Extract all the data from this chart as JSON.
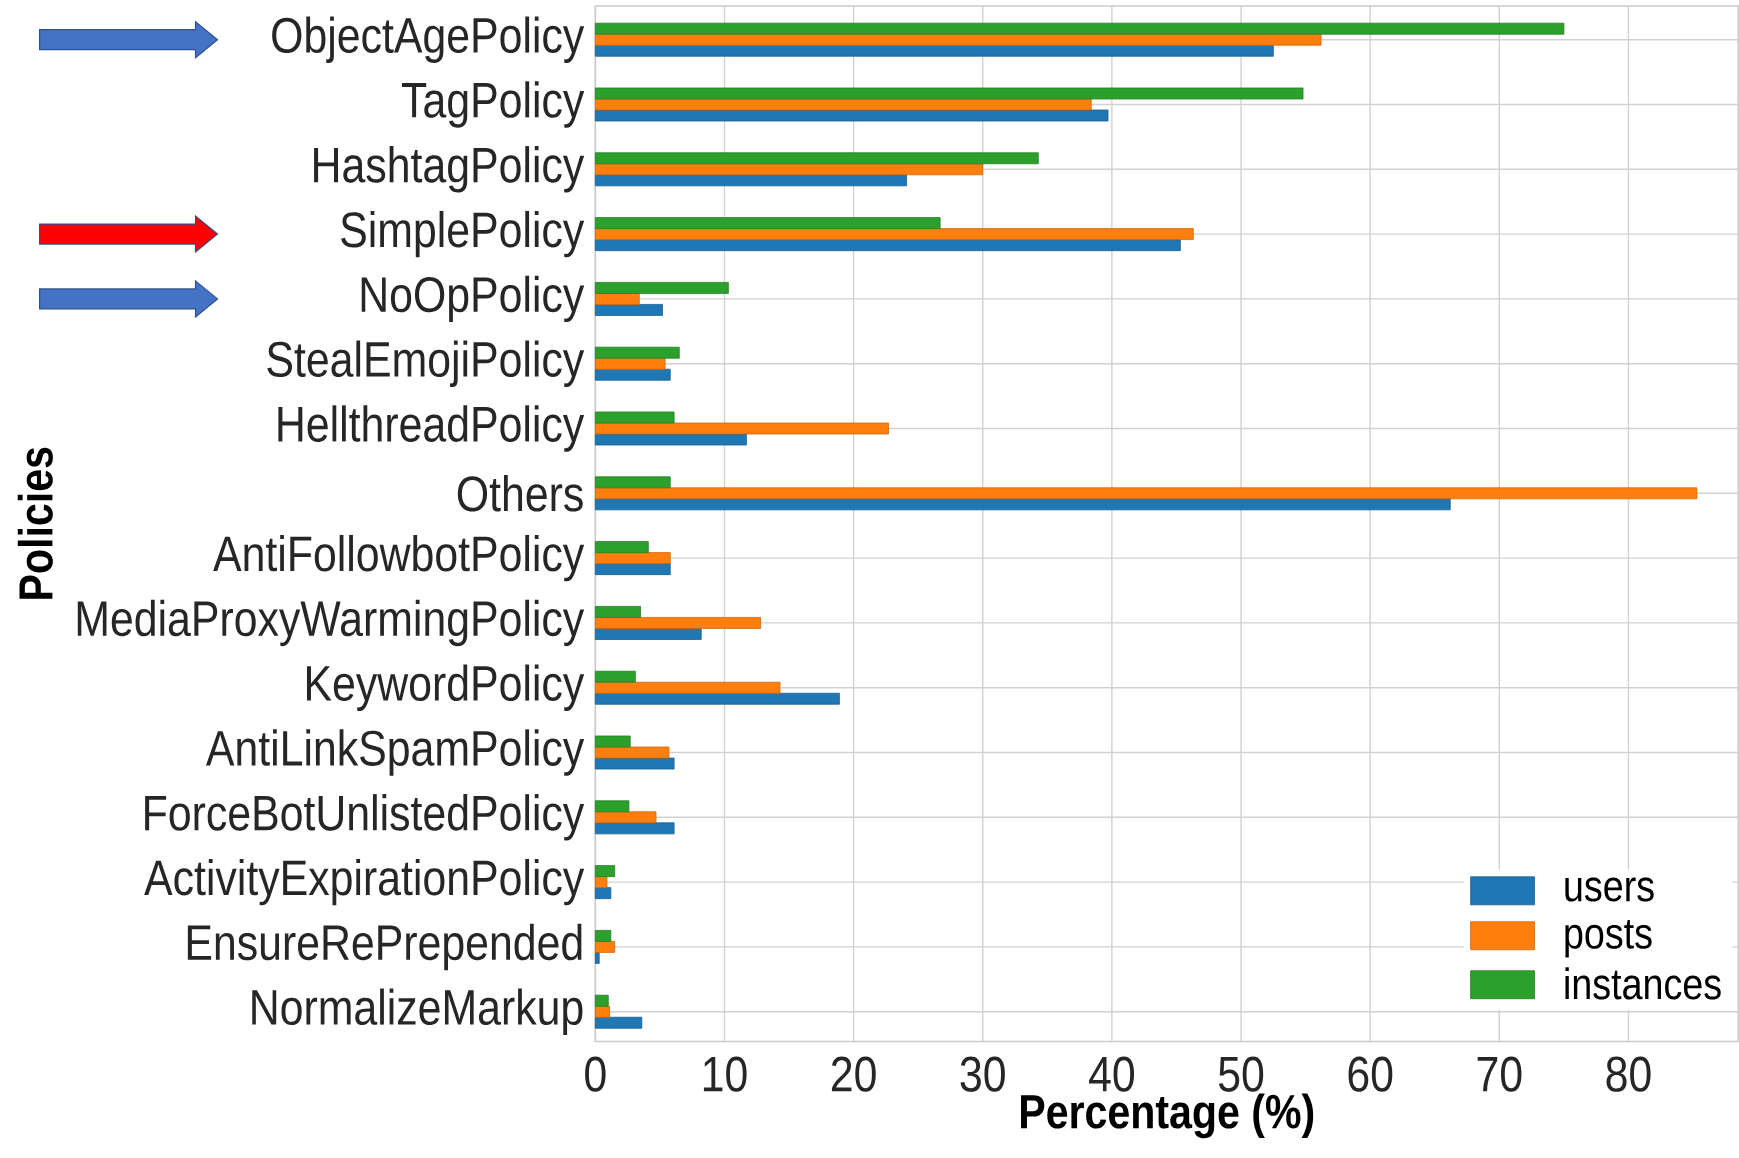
{
  "chart_data": {
    "type": "bar",
    "orientation": "horizontal",
    "xlabel": "Percentage (%)",
    "ylabel": "Policies",
    "categories": [
      "ObjectAgePolicy",
      "TagPolicy",
      "HashtagPolicy",
      "SimplePolicy",
      "NoOpPolicy",
      "StealEmojiPolicy",
      "HellthreadPolicy",
      "Others",
      "AntiFollowbotPolicy",
      "MediaProxyWarmingPolicy",
      "KeywordPolicy",
      "AntiLinkSpamPolicy",
      "ForceBotUnlistedPolicy",
      "ActivityExpirationPolicy",
      "EnsureRePrepended",
      "NormalizeMarkup"
    ],
    "series": [
      {
        "name": "users",
        "color": "#1f77b4",
        "values": [
          52.5,
          39.7,
          24.1,
          45.3,
          5.2,
          5.8,
          11.7,
          66.2,
          5.8,
          8.2,
          18.9,
          6.1,
          6.1,
          1.2,
          0.3,
          3.6
        ]
      },
      {
        "name": "posts",
        "color": "#ff7f0e",
        "values": [
          56.2,
          38.4,
          30.0,
          46.3,
          3.4,
          5.4,
          22.7,
          85.3,
          5.8,
          12.8,
          14.3,
          5.7,
          4.7,
          0.9,
          1.5,
          1.1
        ]
      },
      {
        "name": "instances",
        "color": "#2ca02c",
        "values": [
          75.0,
          54.8,
          34.3,
          26.7,
          10.3,
          6.5,
          6.1,
          5.8,
          4.1,
          3.5,
          3.1,
          2.7,
          2.6,
          1.5,
          1.2,
          1.0
        ]
      }
    ],
    "xlim": [
      0,
      88.5
    ],
    "xticks": [
      0,
      10,
      20,
      30,
      40,
      50,
      60,
      70,
      80
    ],
    "grid": true,
    "legend": "bottom right"
  }
}
